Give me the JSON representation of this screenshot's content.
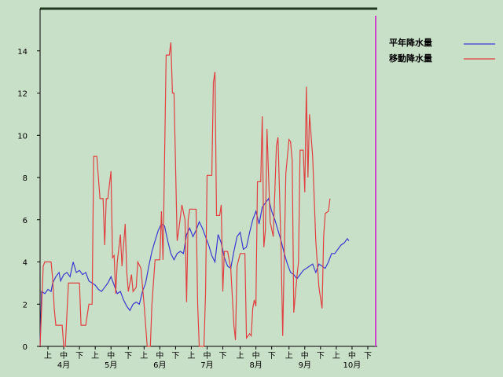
{
  "chart_data": {
    "type": "line",
    "ylim": [
      0,
      16
    ],
    "yticks": [
      0,
      2,
      4,
      6,
      8,
      10,
      12,
      14
    ],
    "x_range": [
      0,
      213
    ],
    "xtick_marks": [
      {
        "label": "上",
        "x": 5
      },
      {
        "label": "中",
        "x": 15
      },
      {
        "label": "下",
        "x": 25
      },
      {
        "label": "上",
        "x": 35
      },
      {
        "label": "中",
        "x": 45
      },
      {
        "label": "下",
        "x": 56
      },
      {
        "label": "上",
        "x": 66
      },
      {
        "label": "中",
        "x": 76
      },
      {
        "label": "下",
        "x": 86
      },
      {
        "label": "上",
        "x": 96
      },
      {
        "label": "中",
        "x": 106
      },
      {
        "label": "下",
        "x": 116
      },
      {
        "label": "上",
        "x": 127
      },
      {
        "label": "中",
        "x": 137
      },
      {
        "label": "下",
        "x": 147
      },
      {
        "label": "上",
        "x": 158
      },
      {
        "label": "中",
        "x": 168
      },
      {
        "label": "下",
        "x": 178
      },
      {
        "label": "上",
        "x": 188
      },
      {
        "label": "中",
        "x": 198
      },
      {
        "label": "下",
        "x": 208
      }
    ],
    "month_labels": [
      {
        "label": "4月",
        "x": 15
      },
      {
        "label": "5月",
        "x": 45
      },
      {
        "label": "6月",
        "x": 76
      },
      {
        "label": "7月",
        "x": 106
      },
      {
        "label": "8月",
        "x": 137
      },
      {
        "label": "9月",
        "x": 168
      },
      {
        "label": "10月",
        "x": 198
      }
    ],
    "marker_x": 213,
    "series": [
      {
        "name": "平年降水量",
        "color": "#3a3acf",
        "points": [
          [
            0,
            0
          ],
          [
            1,
            2.6
          ],
          [
            3,
            2.5
          ],
          [
            5,
            2.7
          ],
          [
            7,
            2.6
          ],
          [
            8,
            3.0
          ],
          [
            10,
            3.3
          ],
          [
            12,
            3.5
          ],
          [
            13,
            3.1
          ],
          [
            15,
            3.4
          ],
          [
            17,
            3.5
          ],
          [
            19,
            3.3
          ],
          [
            21,
            4.0
          ],
          [
            23,
            3.5
          ],
          [
            25,
            3.6
          ],
          [
            27,
            3.4
          ],
          [
            29,
            3.5
          ],
          [
            31,
            3.1
          ],
          [
            33,
            3.0
          ],
          [
            35,
            2.9
          ],
          [
            37,
            2.7
          ],
          [
            39,
            2.6
          ],
          [
            41,
            2.8
          ],
          [
            43,
            3.0
          ],
          [
            45,
            3.3
          ],
          [
            47,
            2.9
          ],
          [
            49,
            2.5
          ],
          [
            51,
            2.6
          ],
          [
            53,
            2.2
          ],
          [
            55,
            1.9
          ],
          [
            57,
            1.7
          ],
          [
            59,
            2.0
          ],
          [
            61,
            2.1
          ],
          [
            63,
            2.0
          ],
          [
            65,
            2.6
          ],
          [
            67,
            3.0
          ],
          [
            69,
            3.8
          ],
          [
            71,
            4.5
          ],
          [
            73,
            5.0
          ],
          [
            75,
            5.5
          ],
          [
            77,
            5.8
          ],
          [
            79,
            5.7
          ],
          [
            81,
            5.0
          ],
          [
            83,
            4.4
          ],
          [
            85,
            4.1
          ],
          [
            87,
            4.4
          ],
          [
            89,
            4.5
          ],
          [
            91,
            4.4
          ],
          [
            93,
            5.3
          ],
          [
            95,
            5.6
          ],
          [
            97,
            5.2
          ],
          [
            99,
            5.5
          ],
          [
            101,
            5.9
          ],
          [
            103,
            5.6
          ],
          [
            105,
            5.2
          ],
          [
            107,
            4.8
          ],
          [
            109,
            4.3
          ],
          [
            111,
            4.0
          ],
          [
            113,
            5.3
          ],
          [
            115,
            4.9
          ],
          [
            117,
            4.2
          ],
          [
            119,
            3.8
          ],
          [
            121,
            3.7
          ],
          [
            123,
            4.5
          ],
          [
            125,
            5.2
          ],
          [
            127,
            5.4
          ],
          [
            129,
            4.6
          ],
          [
            131,
            4.7
          ],
          [
            133,
            5.4
          ],
          [
            135,
            6.0
          ],
          [
            137,
            6.4
          ],
          [
            139,
            5.8
          ],
          [
            141,
            6.6
          ],
          [
            143,
            6.8
          ],
          [
            145,
            7.0
          ],
          [
            147,
            6.4
          ],
          [
            149,
            6.0
          ],
          [
            151,
            5.5
          ],
          [
            153,
            5.0
          ],
          [
            155,
            4.4
          ],
          [
            157,
            3.9
          ],
          [
            159,
            3.5
          ],
          [
            161,
            3.4
          ],
          [
            163,
            3.2
          ],
          [
            165,
            3.4
          ],
          [
            167,
            3.6
          ],
          [
            169,
            3.7
          ],
          [
            171,
            3.8
          ],
          [
            173,
            3.9
          ],
          [
            175,
            3.5
          ],
          [
            177,
            3.9
          ],
          [
            179,
            3.8
          ],
          [
            181,
            3.7
          ],
          [
            183,
            4.0
          ],
          [
            185,
            4.4
          ],
          [
            187,
            4.4
          ],
          [
            189,
            4.6
          ],
          [
            191,
            4.8
          ],
          [
            193,
            4.9
          ],
          [
            195,
            5.1
          ],
          [
            196,
            5.0
          ]
        ]
      },
      {
        "name": "移動降水量",
        "color": "#e04040",
        "points": [
          [
            0,
            0
          ],
          [
            2,
            3.8
          ],
          [
            3,
            4.0
          ],
          [
            7,
            4.0
          ],
          [
            8,
            3.2
          ],
          [
            9,
            1.8
          ],
          [
            10,
            1.0
          ],
          [
            14,
            1.0
          ],
          [
            15,
            0
          ],
          [
            16,
            0
          ],
          [
            18,
            3.0
          ],
          [
            20,
            3.0
          ],
          [
            25,
            3.0
          ],
          [
            26,
            1.0
          ],
          [
            29,
            1.0
          ],
          [
            31,
            2.0
          ],
          [
            33,
            2.0
          ],
          [
            34,
            9.0
          ],
          [
            36,
            9.0
          ],
          [
            38,
            7.0
          ],
          [
            40,
            7.0
          ],
          [
            41,
            4.8
          ],
          [
            42,
            7.0
          ],
          [
            43,
            7.0
          ],
          [
            45,
            8.3
          ],
          [
            46,
            4.2
          ],
          [
            47,
            4.3
          ],
          [
            48,
            2.5
          ],
          [
            49,
            4.0
          ],
          [
            51,
            5.3
          ],
          [
            52,
            3.8
          ],
          [
            54,
            5.8
          ],
          [
            55,
            3.5
          ],
          [
            56,
            2.6
          ],
          [
            58,
            3.4
          ],
          [
            59,
            2.6
          ],
          [
            61,
            2.8
          ],
          [
            62,
            4.0
          ],
          [
            64,
            3.7
          ],
          [
            66,
            2.0
          ],
          [
            68,
            0
          ],
          [
            70,
            0
          ],
          [
            71,
            2.0
          ],
          [
            73,
            4.1
          ],
          [
            76,
            4.1
          ],
          [
            77,
            6.4
          ],
          [
            78,
            4.1
          ],
          [
            80,
            13.8
          ],
          [
            82,
            13.8
          ],
          [
            83,
            14.4
          ],
          [
            84,
            12.0
          ],
          [
            85,
            12.0
          ],
          [
            87,
            5.0
          ],
          [
            88,
            5.5
          ],
          [
            90,
            6.7
          ],
          [
            92,
            6.0
          ],
          [
            93,
            2.1
          ],
          [
            94,
            6.0
          ],
          [
            95,
            6.5
          ],
          [
            99,
            6.5
          ],
          [
            100,
            2.0
          ],
          [
            101,
            0
          ],
          [
            104,
            0
          ],
          [
            105,
            2.5
          ],
          [
            106,
            8.1
          ],
          [
            109,
            8.1
          ],
          [
            110,
            12.5
          ],
          [
            111,
            13.0
          ],
          [
            112,
            6.2
          ],
          [
            114,
            6.2
          ],
          [
            115,
            6.7
          ],
          [
            116,
            2.6
          ],
          [
            117,
            4.5
          ],
          [
            119,
            4.5
          ],
          [
            121,
            3.7
          ],
          [
            123,
            1.0
          ],
          [
            124,
            0.3
          ],
          [
            125,
            3.8
          ],
          [
            127,
            4.4
          ],
          [
            130,
            4.4
          ],
          [
            131,
            0.4
          ],
          [
            133,
            0.6
          ],
          [
            134,
            0.5
          ],
          [
            135,
            1.8
          ],
          [
            136,
            2.2
          ],
          [
            137,
            1.9
          ],
          [
            138,
            7.8
          ],
          [
            140,
            7.8
          ],
          [
            141,
            10.9
          ],
          [
            142,
            4.7
          ],
          [
            143,
            5.5
          ],
          [
            144,
            10.3
          ],
          [
            146,
            5.9
          ],
          [
            148,
            5.2
          ],
          [
            150,
            9.5
          ],
          [
            151,
            9.9
          ],
          [
            153,
            4.5
          ],
          [
            154,
            0.5
          ],
          [
            156,
            8.2
          ],
          [
            158,
            9.8
          ],
          [
            159,
            9.7
          ],
          [
            160,
            8.8
          ],
          [
            161,
            1.6
          ],
          [
            163,
            3.3
          ],
          [
            164,
            4.0
          ],
          [
            165,
            9.3
          ],
          [
            167,
            9.3
          ],
          [
            168,
            7.3
          ],
          [
            169,
            12.3
          ],
          [
            170,
            8.0
          ],
          [
            171,
            11.0
          ],
          [
            173,
            9.0
          ],
          [
            175,
            5.0
          ],
          [
            177,
            2.8
          ],
          [
            178,
            2.3
          ],
          [
            179,
            1.8
          ],
          [
            180,
            5.2
          ],
          [
            181,
            6.3
          ],
          [
            183,
            6.4
          ],
          [
            184,
            7.0
          ]
        ]
      }
    ]
  }
}
